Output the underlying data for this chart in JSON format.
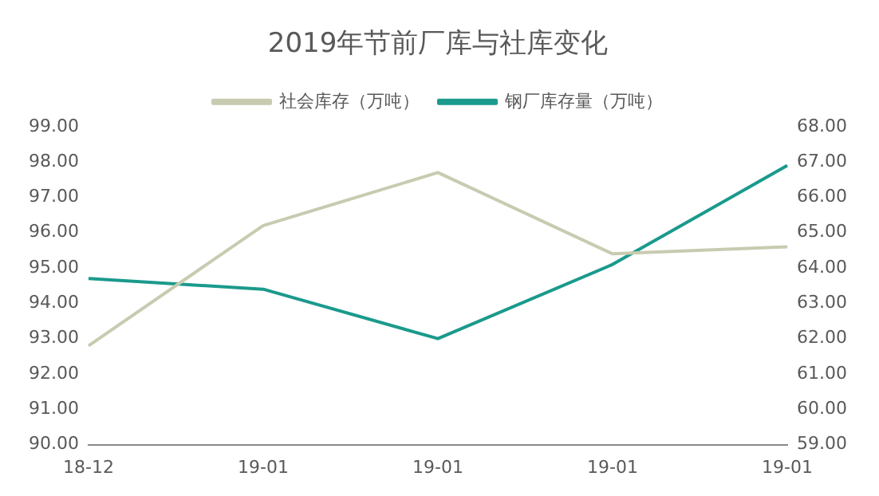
{
  "chart_data": {
    "type": "line",
    "title": "2019年节前厂库与社库变化",
    "categories": [
      "18-12",
      "19-01",
      "19-01",
      "19-01",
      "19-01"
    ],
    "series": [
      {
        "name": "社会库存（万吨）",
        "color": "#c8cbb0",
        "values": [
          92.8,
          96.2,
          97.7,
          95.4,
          95.6
        ]
      },
      {
        "name": "钢厂库存量（万吨）",
        "color": "#1a9a8c",
        "axis": "y2",
        "values": [
          63.7,
          63.4,
          62.0,
          64.1,
          66.9
        ]
      }
    ],
    "ylim": [
      90,
      99
    ],
    "yticks": [
      {
        "value": 90,
        "label": "90.00"
      },
      {
        "value": 91,
        "label": "91.00"
      },
      {
        "value": 92,
        "label": "92.00"
      },
      {
        "value": 93,
        "label": "93.00"
      },
      {
        "value": 94,
        "label": "94.00"
      },
      {
        "value": 95,
        "label": "95.00"
      },
      {
        "value": 96,
        "label": "96.00"
      },
      {
        "value": 97,
        "label": "97.00"
      },
      {
        "value": 98,
        "label": "98.00"
      },
      {
        "value": 99,
        "label": "99.00"
      }
    ],
    "y2lim": [
      59,
      68
    ],
    "y2ticks": [
      {
        "value": 59,
        "label": "59.00"
      },
      {
        "value": 60,
        "label": "60.00"
      },
      {
        "value": 61,
        "label": "61.00"
      },
      {
        "value": 62,
        "label": "62.00"
      },
      {
        "value": 63,
        "label": "63.00"
      },
      {
        "value": 64,
        "label": "64.00"
      },
      {
        "value": 65,
        "label": "65.00"
      },
      {
        "value": 66,
        "label": "66.00"
      },
      {
        "value": 67,
        "label": "67.00"
      },
      {
        "value": 68,
        "label": "68.00"
      }
    ],
    "legend": "top",
    "grid": false,
    "marker": "none"
  }
}
